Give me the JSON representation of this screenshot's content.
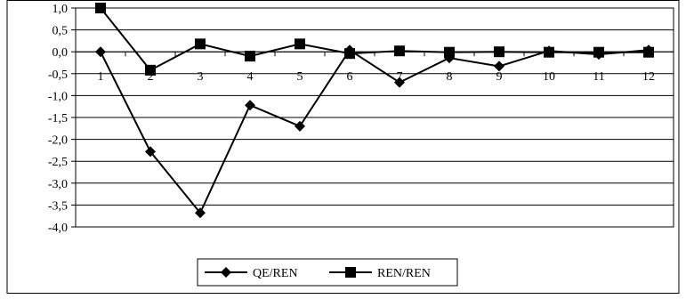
{
  "chart_data": {
    "type": "line",
    "title": "",
    "xlabel": "",
    "ylabel": "",
    "categories": [
      "1",
      "2",
      "3",
      "4",
      "5",
      "6",
      "7",
      "8",
      "9",
      "10",
      "11",
      "12"
    ],
    "ylim": [
      -4.0,
      1.0
    ],
    "yticks": [
      "1,0",
      "0,5",
      "0,0",
      "-0,5",
      "-1,0",
      "-1,5",
      "-2,0",
      "-2,5",
      "-3,0",
      "-3,5",
      "-4,0"
    ],
    "ytick_values": [
      1.0,
      0.5,
      0.0,
      -0.5,
      -1.0,
      -1.5,
      -2.0,
      -2.5,
      -3.0,
      -3.5,
      -4.0
    ],
    "grid": "horizontal",
    "legend_position": "bottom-center",
    "series": [
      {
        "name": "QE/REN",
        "marker": "diamond",
        "color": "#000000",
        "values": [
          0.0,
          -2.28,
          -3.68,
          -1.22,
          -1.7,
          0.04,
          -0.7,
          -0.14,
          -0.33,
          0.02,
          -0.06,
          0.04
        ]
      },
      {
        "name": "REN/REN",
        "marker": "square",
        "color": "#000000",
        "values": [
          1.0,
          -0.42,
          0.18,
          -0.1,
          0.18,
          -0.04,
          0.02,
          -0.01,
          0.0,
          -0.01,
          -0.01,
          -0.01
        ]
      }
    ]
  }
}
